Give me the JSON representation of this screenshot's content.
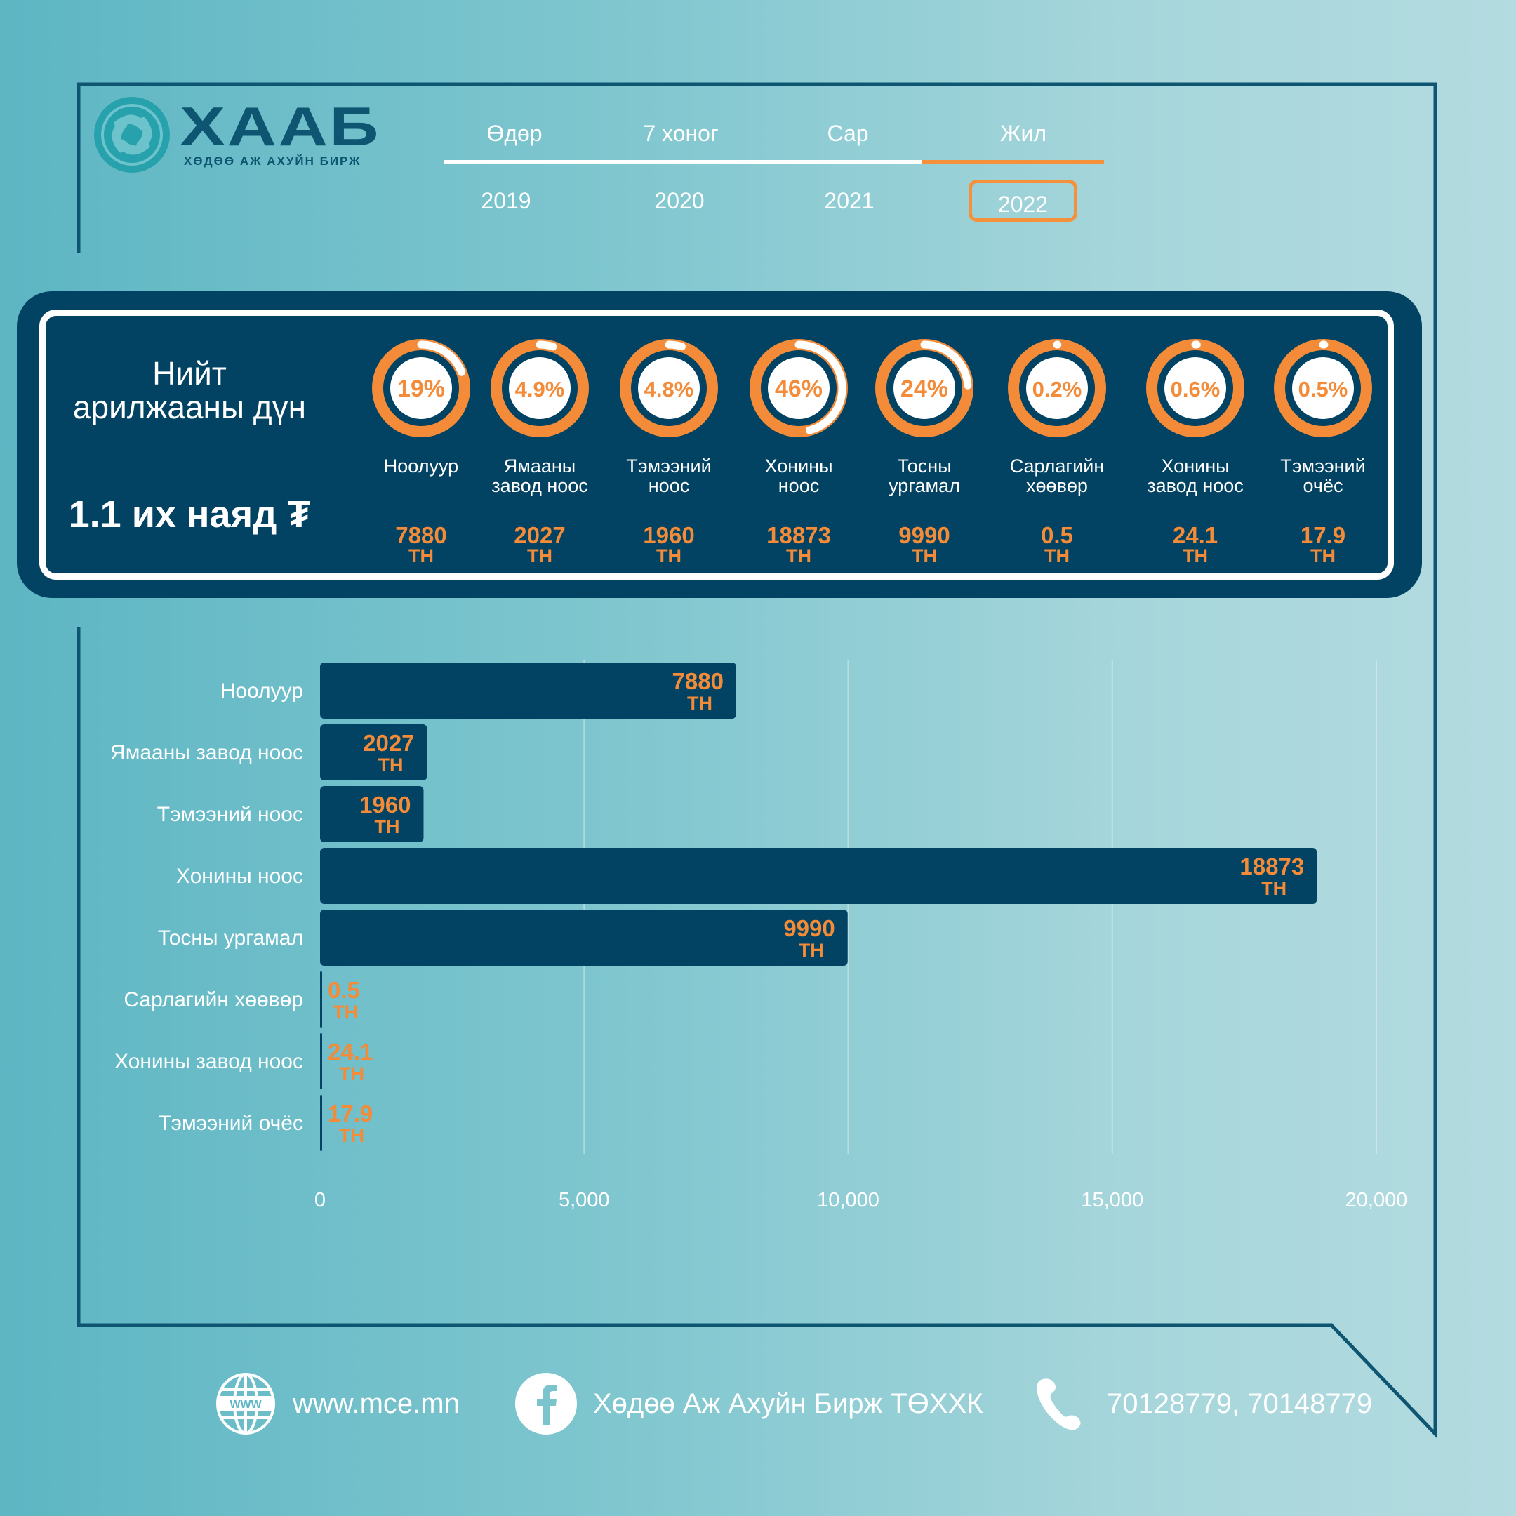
{
  "logo": {
    "title": "ХААБ",
    "subtitle": "ХӨДӨӨ АЖ АХУЙН БИРЖ",
    "icon": "knot-emblem-icon"
  },
  "period_tabs": [
    {
      "label": "Өдөр",
      "active": false
    },
    {
      "label": "7 хоног",
      "active": false
    },
    {
      "label": "Сар",
      "active": false
    },
    {
      "label": "Жил",
      "active": true
    }
  ],
  "years": [
    {
      "label": "2019",
      "active": false
    },
    {
      "label": "2020",
      "active": false
    },
    {
      "label": "2021",
      "active": false
    },
    {
      "label": "2022",
      "active": true
    }
  ],
  "summary": {
    "title_line1": "Нийт",
    "title_line2": "арилжааны дүн",
    "total": "1.1 их наяд ₮",
    "items": [
      {
        "label_line1": "Ноолуур",
        "label_line2": "",
        "percent": 19,
        "percent_label": "19%",
        "value": "7880",
        "unit": "ТН"
      },
      {
        "label_line1": "Ямааны",
        "label_line2": "завод ноос",
        "percent": 4.9,
        "percent_label": "4.9%",
        "value": "2027",
        "unit": "ТН"
      },
      {
        "label_line1": "Тэмээний",
        "label_line2": "ноос",
        "percent": 4.8,
        "percent_label": "4.8%",
        "value": "1960",
        "unit": "ТН"
      },
      {
        "label_line1": "Хонины",
        "label_line2": "ноос",
        "percent": 46,
        "percent_label": "46%",
        "value": "18873",
        "unit": "ТН"
      },
      {
        "label_line1": "Тосны",
        "label_line2": "ургамал",
        "percent": 24,
        "percent_label": "24%",
        "value": "9990",
        "unit": "ТН"
      },
      {
        "label_line1": "Сарлагийн",
        "label_line2": "хөөвөр",
        "percent": 0.2,
        "percent_label": "0.2%",
        "value": "0.5",
        "unit": "ТН"
      },
      {
        "label_line1": "Хонины",
        "label_line2": "завод ноос",
        "percent": 0.6,
        "percent_label": "0.6%",
        "value": "24.1",
        "unit": "ТН"
      },
      {
        "label_line1": "Тэмээний",
        "label_line2": "очёс",
        "percent": 0.5,
        "percent_label": "0.5%",
        "value": "17.9",
        "unit": "ТН"
      }
    ]
  },
  "chart_data": {
    "type": "bar",
    "orientation": "horizontal",
    "title": "",
    "xlabel": "",
    "ylabel": "",
    "categories": [
      "Ноолуур",
      "Ямааны завод ноос",
      "Тэмээний ноос",
      "Хонины ноос",
      "Тосны ургамал",
      "Сарлагийн хөөвөр",
      "Хонины завод ноос",
      "Тэмээний очёс"
    ],
    "values": [
      7880,
      2027,
      1960,
      18873,
      9990,
      0.5,
      24.1,
      17.9
    ],
    "value_labels": [
      "7880",
      "2027",
      "1960",
      "18873",
      "9990",
      "0.5",
      "24.1",
      "17.9"
    ],
    "unit_label": "ТН",
    "xlim": [
      0,
      20000
    ],
    "xticks": [
      0,
      5000,
      10000,
      15000,
      20000
    ],
    "xtick_labels": [
      "0",
      "5,000",
      "10,000",
      "15,000",
      "20,000"
    ],
    "grid": true,
    "legend": "none"
  },
  "footer": {
    "website": "www.mce.mn",
    "facebook": "Хөдөө Аж Ахуйн Бирж ТӨХХК",
    "phone": "70128779, 70148779"
  },
  "colors": {
    "navy": "#024262",
    "orange": "#f38b38",
    "accent_orange": "#f4913a",
    "white": "#ffffff",
    "teal": "#27a2ad"
  }
}
